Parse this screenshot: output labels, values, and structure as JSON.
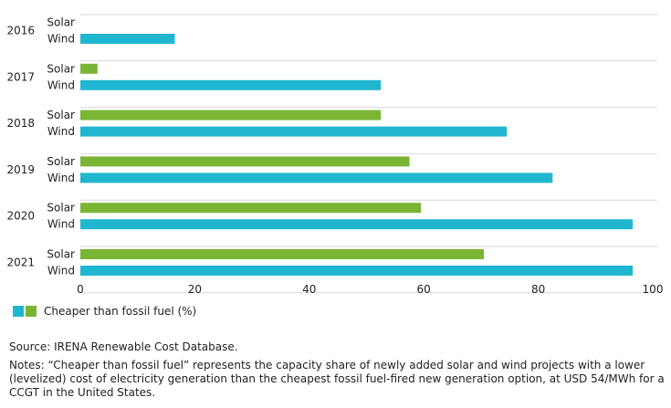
{
  "chart_data": {
    "type": "bar",
    "orientation": "horizontal",
    "groups": [
      "2016",
      "2017",
      "2018",
      "2019",
      "2020",
      "2021"
    ],
    "series": [
      {
        "name": "Solar",
        "color": "#7ab536",
        "values": [
          0,
          3,
          52.5,
          57.5,
          59.5,
          70.5
        ]
      },
      {
        "name": "Wind",
        "color": "#21b6d0",
        "values": [
          16.5,
          52.5,
          74.5,
          82.5,
          96.5,
          96.5
        ]
      }
    ],
    "xlim": [
      0,
      100
    ],
    "xticks": [
      0,
      20,
      40,
      60,
      80,
      100
    ],
    "grid": "horizontal",
    "legend_label": "Cheaper than fossil fuel (%)"
  },
  "source": "Source: IRENA Renewable Cost Database.",
  "notes": "Notes: “Cheaper than fossil fuel” represents the capacity share of newly added solar and wind projects with a lower (levelized) cost of electricity generation than the cheapest fossil fuel-fired new generation option, at USD 54/MWh for a CCGT in the United States."
}
